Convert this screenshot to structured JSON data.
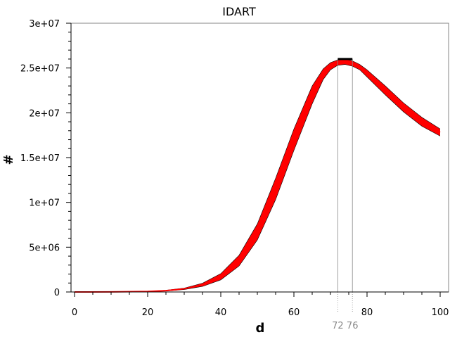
{
  "chart_data": {
    "type": "line",
    "title": "IDART",
    "xlabel": "d",
    "ylabel": "#",
    "xlim": [
      0,
      100
    ],
    "ylim": [
      0,
      30000000
    ],
    "x_ticks": [
      0,
      20,
      40,
      60,
      80,
      100
    ],
    "x_tick_labels": [
      "0",
      "20",
      "40",
      "60",
      "80",
      "100"
    ],
    "y_ticks": [
      0,
      5000000,
      10000000,
      15000000,
      20000000,
      25000000,
      30000000
    ],
    "y_tick_labels": [
      "0",
      "5e+06",
      "1e+07",
      "1.5e+07",
      "2e+07",
      "2.5e+07",
      "3e+07"
    ],
    "grid": false,
    "line_color": "#ff0000",
    "edge_color": "#000000",
    "marker_color": "#888888",
    "peak_interval": {
      "start": 72,
      "end": 76,
      "start_label": "72",
      "end_label": "76",
      "max_value": 26000000
    },
    "series": [
      {
        "x": [
          0,
          10,
          20,
          25,
          30,
          35,
          40,
          45,
          50,
          55,
          60,
          65,
          68,
          70,
          72,
          74,
          76,
          78,
          80,
          85,
          90,
          95,
          100
        ],
        "center": [
          0,
          10000,
          60000,
          150000,
          350000,
          800000,
          1700000,
          3500000,
          6700000,
          11500000,
          17000000,
          22000000,
          24300000,
          25200000,
          25600000,
          25700000,
          25500000,
          25100000,
          24400000,
          22500000,
          20600000,
          19000000,
          17800000
        ],
        "lower": [
          0,
          8000,
          45000,
          110000,
          270000,
          620000,
          1350000,
          2900000,
          5800000,
          10300000,
          15800000,
          21000000,
          23700000,
          24800000,
          25300000,
          25400000,
          25200000,
          24800000,
          24000000,
          22000000,
          20100000,
          18500000,
          17400000
        ],
        "upper": [
          0,
          12000,
          75000,
          190000,
          430000,
          980000,
          2050000,
          4100000,
          7600000,
          12700000,
          18200000,
          23000000,
          24900000,
          25600000,
          25900000,
          26000000,
          25800000,
          25400000,
          24800000,
          23000000,
          21100000,
          19500000,
          18200000
        ]
      }
    ]
  }
}
